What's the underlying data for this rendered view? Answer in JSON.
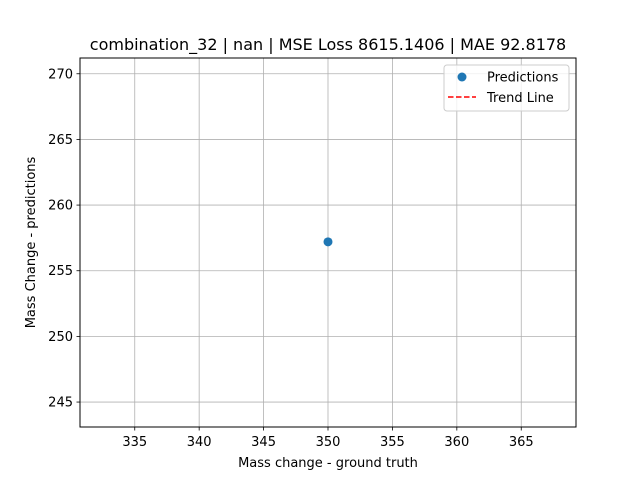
{
  "chart_data": {
    "type": "scatter",
    "title": "combination_32 | nan | MSE Loss 8615.1406 | MAE 92.8178",
    "xlabel": "Mass change - ground truth",
    "ylabel": "Mass Change - predictions",
    "xlim": [
      330.75,
      369.25
    ],
    "ylim": [
      243.1,
      271.2
    ],
    "xticks": [
      "335",
      "340",
      "345",
      "350",
      "355",
      "360",
      "365"
    ],
    "yticks": [
      "245",
      "250",
      "255",
      "260",
      "265",
      "270"
    ],
    "grid": true,
    "legend_position": "top-right",
    "series": [
      {
        "name": "Predictions",
        "kind": "scatter",
        "color": "#1f77b4",
        "points": [
          {
            "x": 350,
            "y": 257.2
          }
        ]
      },
      {
        "name": "Trend Line",
        "kind": "line",
        "style": "dashed",
        "color": "#ff0000",
        "points": []
      }
    ]
  }
}
